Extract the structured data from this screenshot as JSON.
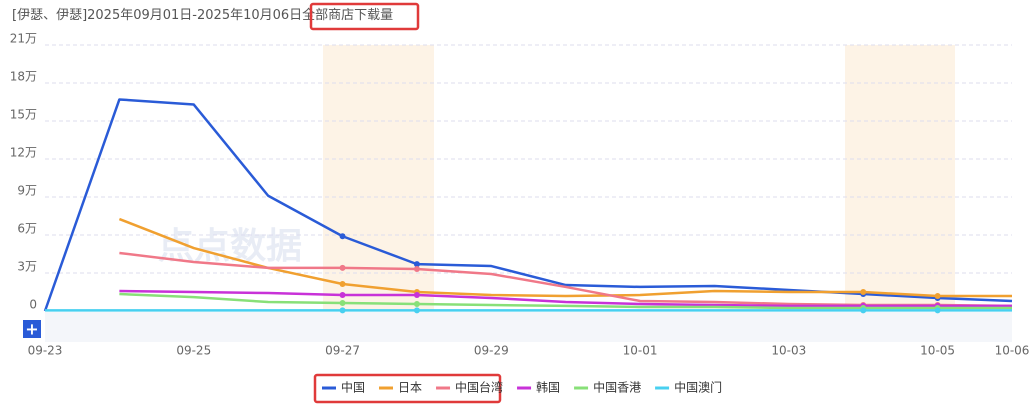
{
  "chart_data": {
    "type": "line",
    "title_prefix": "[伊瑟、伊瑟]2025年09月01日-2025年10月06日",
    "title_highlight": "全部商店下载量",
    "watermark": "点点数据",
    "button": "+",
    "categories": [
      "09-23",
      null,
      "09-25",
      null,
      "09-27",
      null,
      "09-29",
      null,
      "10-01",
      null,
      "10-03",
      null,
      "10-05",
      "10-06"
    ],
    "ylim": [
      0,
      210000
    ],
    "yticks": [
      0,
      {
        "value": 30000,
        "label": "3万"
      },
      {
        "value": 60000,
        "label": "6万"
      },
      {
        "value": 90000,
        "label": "9万"
      },
      {
        "value": 120000,
        "label": "12万"
      },
      {
        "value": 150000,
        "label": "15万"
      },
      {
        "value": 180000,
        "label": "18万"
      },
      {
        "value": 210000,
        "label": "21万"
      }
    ],
    "grid": true,
    "legend": "bottom",
    "series": [
      {
        "name": "中国",
        "color": "#2a5bd7",
        "values": [
          0,
          167000,
          163000,
          91000,
          59000,
          37000,
          35500,
          20500,
          19000,
          19700,
          16600,
          13400,
          10300,
          7900
        ]
      },
      {
        "name": "日本",
        "color": "#f0a030",
        "values": [
          null,
          72600,
          49700,
          34000,
          21300,
          15000,
          12600,
          11800,
          12600,
          15800,
          15000,
          15000,
          11800,
          11800
        ]
      },
      {
        "name": "中国台湾",
        "color": "#f07888",
        "values": [
          null,
          45800,
          38700,
          34000,
          34000,
          33200,
          29200,
          19000,
          7900,
          7100,
          5500,
          4700,
          4700,
          4000
        ]
      },
      {
        "name": "韩国",
        "color": "#c832d8",
        "values": [
          null,
          15800,
          15000,
          14200,
          12600,
          12600,
          10300,
          7100,
          5500,
          4700,
          4000,
          4000,
          4000,
          4000
        ]
      },
      {
        "name": "中国香港",
        "color": "#88e078",
        "values": [
          null,
          13400,
          11000,
          7100,
          6300,
          5500,
          4700,
          4000,
          3200,
          3200,
          2400,
          2400,
          2400,
          2400
        ]
      },
      {
        "name": "中国澳门",
        "color": "#48d0f0",
        "values": [
          500,
          500,
          500,
          500,
          500,
          500,
          500,
          500,
          500,
          500,
          500,
          500,
          500,
          500
        ]
      }
    ]
  }
}
